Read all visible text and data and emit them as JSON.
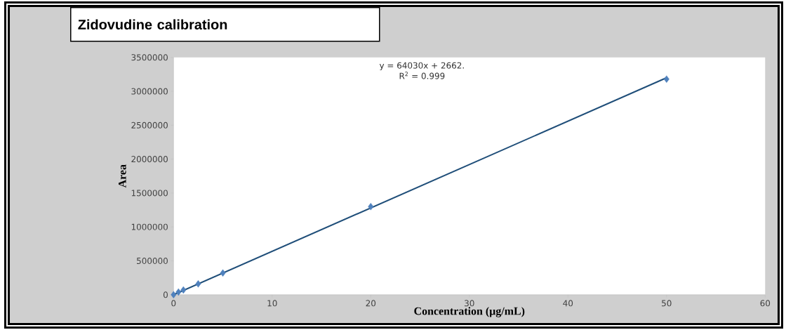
{
  "chart_data": {
    "type": "scatter",
    "title": "Zidovudine calibration",
    "xlabel": "Concentration (µg/mL)",
    "ylabel": "Area",
    "annotations": [
      "y = 64030x + 2662.",
      "R$^{2}$ = 0.999"
    ],
    "series": [
      {
        "type": "line",
        "color": "#1f4e79",
        "x": [
          0,
          50
        ],
        "values": [
          0,
          3200000
        ],
        "marker": "none"
      },
      {
        "color": "#4f81bd",
        "x": [
          0,
          0.5,
          1,
          2.5,
          5,
          20,
          50
        ],
        "values": [
          0,
          40000,
          70000,
          160000,
          320000,
          1300000,
          3180000
        ],
        "marker": "diamond"
      }
    ],
    "xlim": [
      0,
      60
    ],
    "xticks": [
      0,
      10,
      20,
      30,
      40,
      50,
      60
    ],
    "ylim": [
      0,
      3500000
    ],
    "yticks": [
      0,
      500000,
      1000000,
      1500000,
      2000000,
      2500000,
      3000000,
      3500000
    ],
    "grid": false
  }
}
